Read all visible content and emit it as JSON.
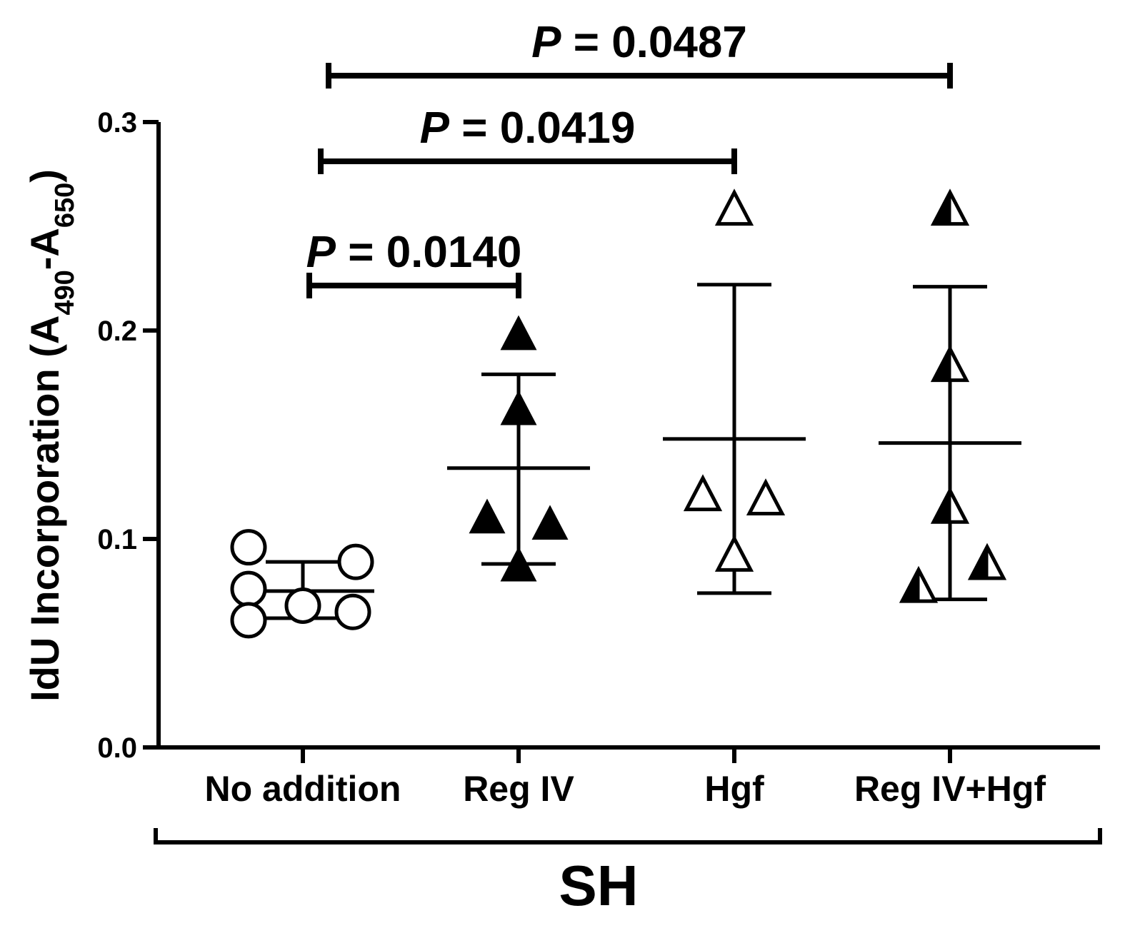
{
  "chart_data": {
    "type": "scatter",
    "title": "",
    "xlabel": "SH",
    "ylabel": {
      "text": "IdU Incorporation (A",
      "sub1": "490",
      "mid": "-A",
      "sub2": "650",
      "end": ")"
    },
    "ylim": [
      0,
      0.3
    ],
    "yticks": [
      "0.0",
      "0.1",
      "0.2",
      "0.3"
    ],
    "grid": false,
    "categories": [
      "No addition",
      "Reg IV",
      "Hgf",
      "Reg IV+Hgf"
    ],
    "series": [
      {
        "category": "No addition",
        "marker": "circle-open",
        "points": [
          0.096,
          0.089,
          0.076,
          0.068,
          0.065,
          0.061
        ],
        "mean": 0.075,
        "sd_low": 0.062,
        "sd_high": 0.089
      },
      {
        "category": "Reg IV",
        "marker": "triangle-filled",
        "points": [
          0.198,
          0.162,
          0.11,
          0.107,
          0.087
        ],
        "mean": 0.134,
        "sd_low": 0.088,
        "sd_high": 0.179
      },
      {
        "category": "Hgf",
        "marker": "triangle-open",
        "points": [
          0.258,
          0.121,
          0.119,
          0.092
        ],
        "mean": 0.148,
        "sd_low": 0.074,
        "sd_high": 0.222
      },
      {
        "category": "Reg IV+Hgf",
        "marker": "triangle-half",
        "points": [
          0.258,
          0.183,
          0.115,
          0.088,
          0.077
        ],
        "mean": 0.146,
        "sd_low": 0.071,
        "sd_high": 0.221
      }
    ],
    "comparisons": [
      {
        "from": "No addition",
        "to": "Reg IV",
        "p_label": "P",
        "p_text": " = 0.0140"
      },
      {
        "from": "No addition",
        "to": "Hgf",
        "p_label": "P",
        "p_text": " = 0.0419"
      },
      {
        "from": "No addition",
        "to": "Reg IV+Hgf",
        "p_label": "P",
        "p_text": " = 0.0487"
      }
    ]
  }
}
